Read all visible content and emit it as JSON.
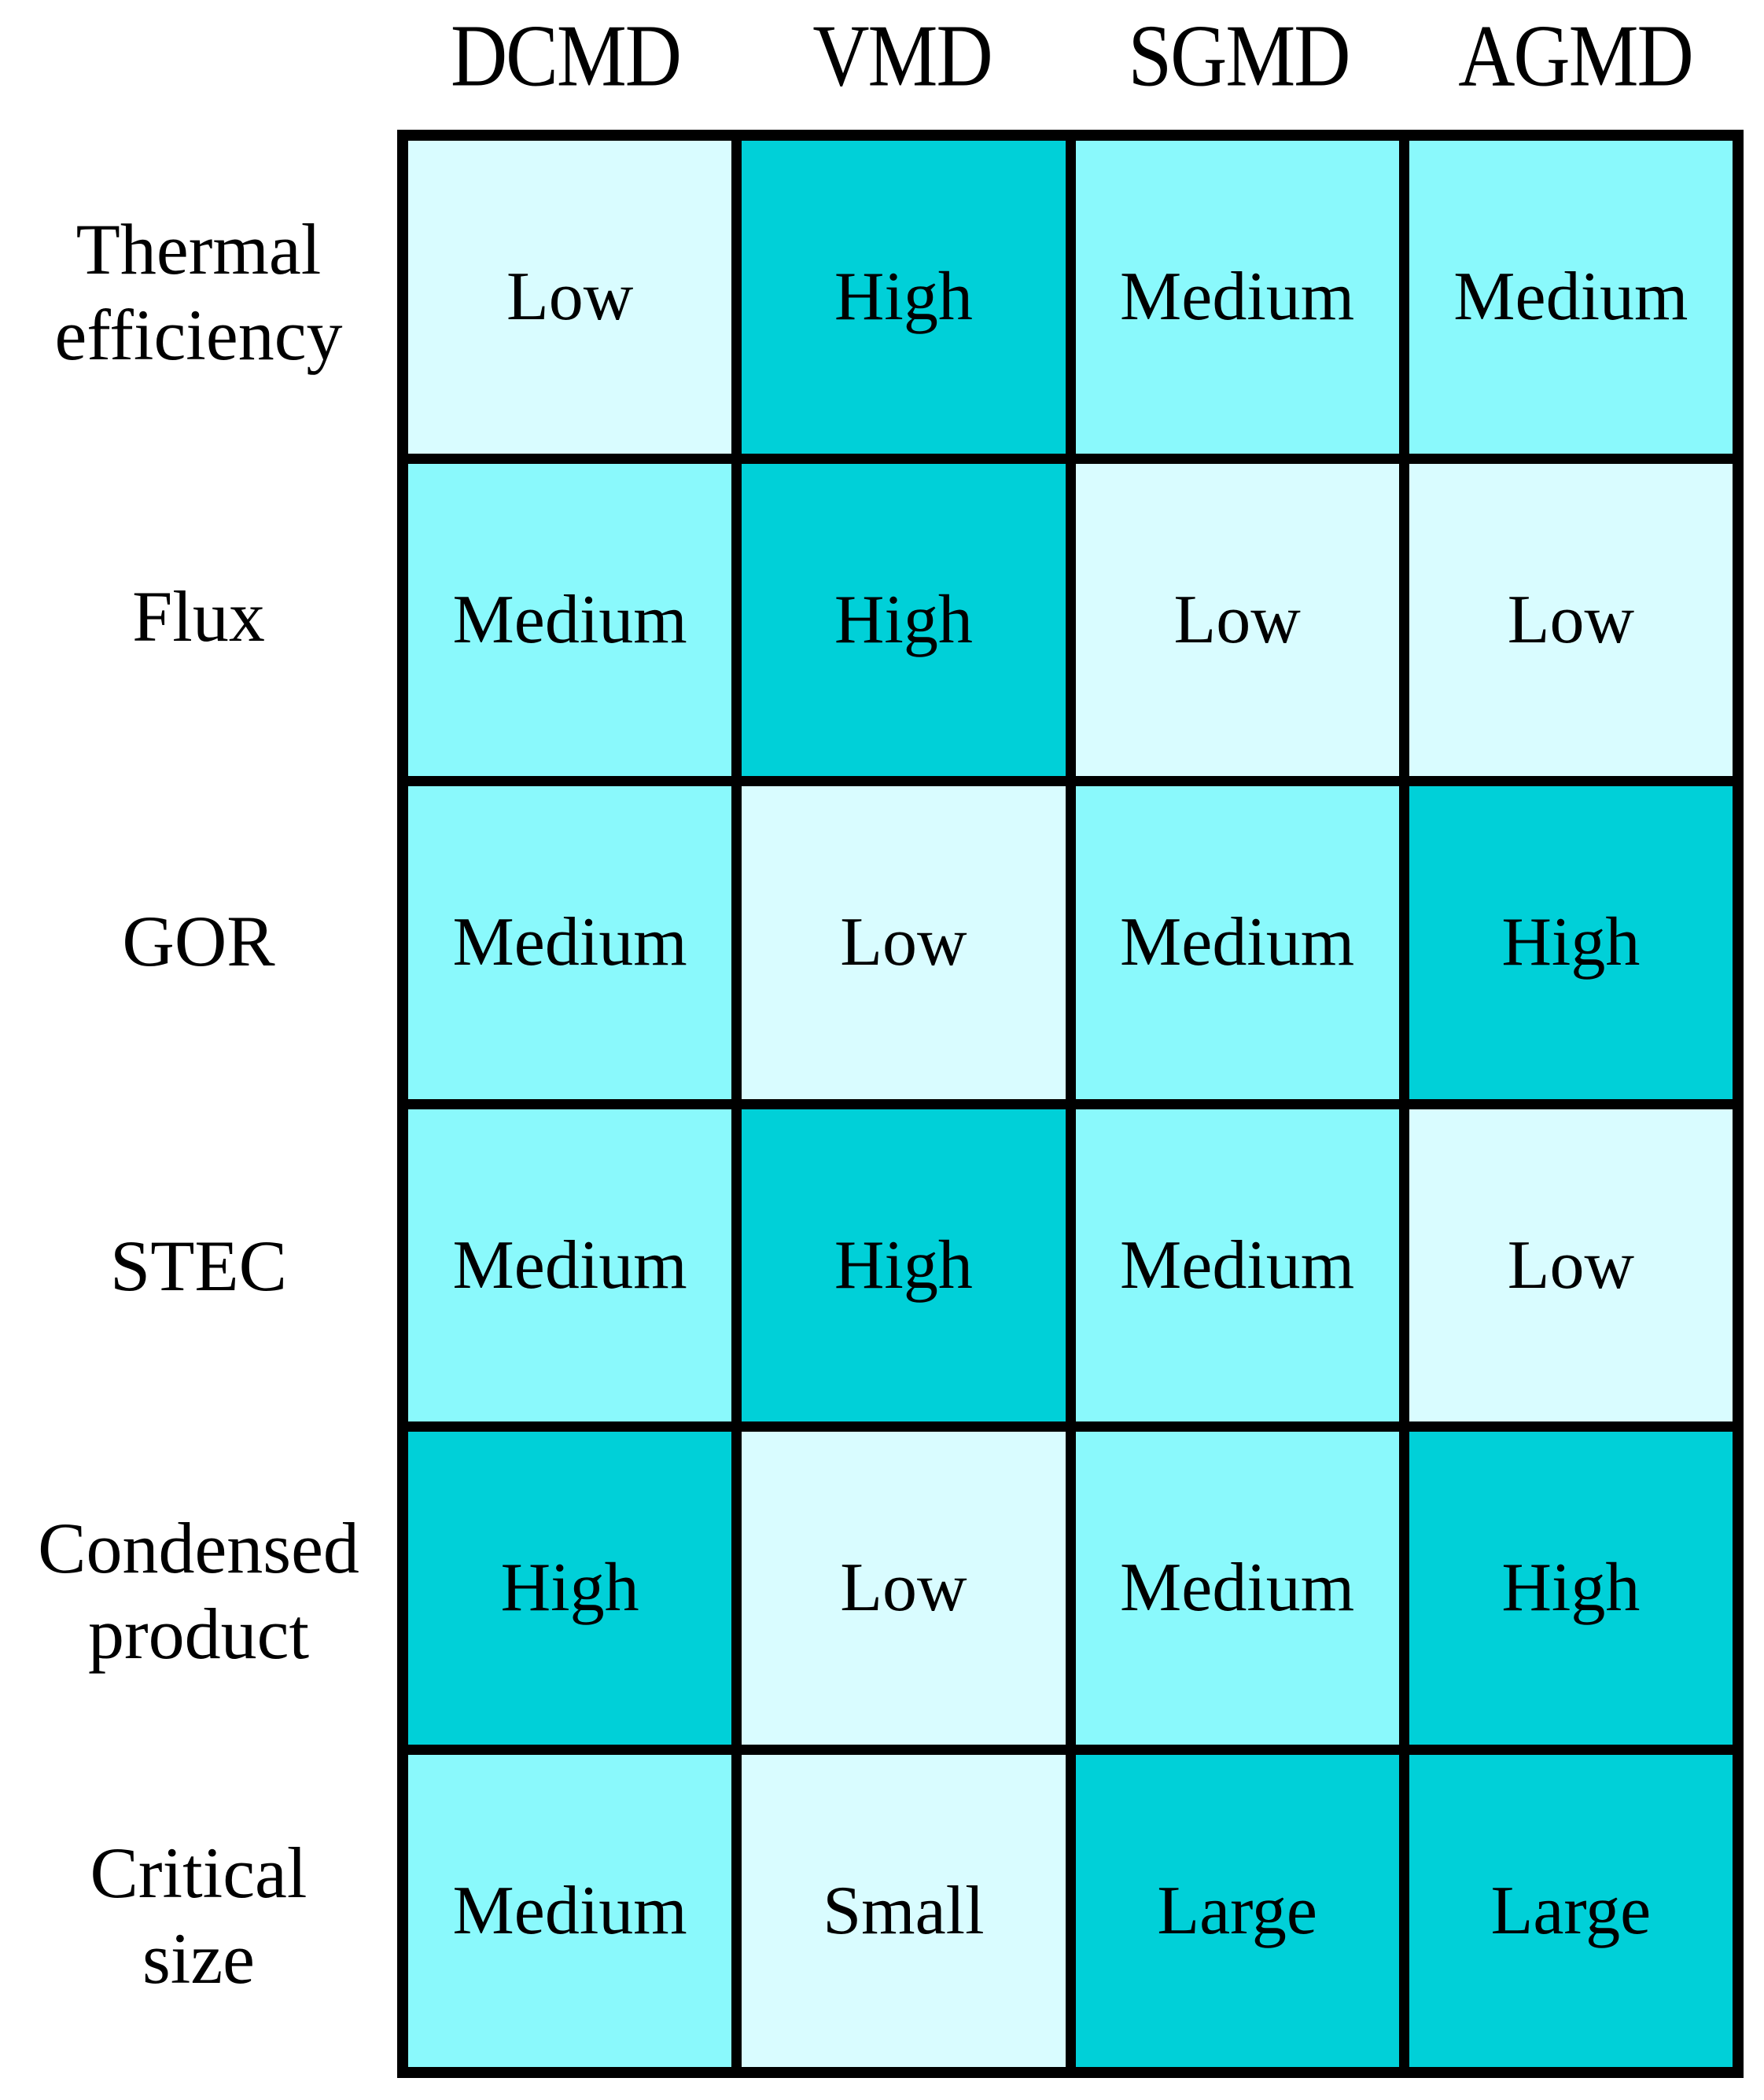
{
  "table": {
    "columns": [
      "DCMD",
      "VMD",
      "SGMD",
      "AGMD"
    ],
    "rows": [
      {
        "label": "Thermal\nefficiency",
        "values": [
          "Low",
          "High",
          "Medium",
          "Medium"
        ]
      },
      {
        "label": "Flux",
        "values": [
          "Medium",
          "High",
          "Low",
          "Low"
        ]
      },
      {
        "label": "GOR",
        "values": [
          "Medium",
          "Low",
          "Medium",
          "High"
        ]
      },
      {
        "label": "STEC",
        "values": [
          "Medium",
          "High",
          "Medium",
          "Low"
        ]
      },
      {
        "label": "Condensed\nproduct",
        "values": [
          "High",
          "Low",
          "Medium",
          "High"
        ]
      },
      {
        "label": "Critical\nsize",
        "values": [
          "Medium",
          "Small",
          "Large",
          "Large"
        ]
      }
    ],
    "level_by_text": {
      "Low": "low",
      "Small": "low",
      "Medium": "medium",
      "High": "high",
      "Large": "high"
    },
    "colors": {
      "low": "#d9fcff",
      "medium": "#8af9fc",
      "high": "#00d0d8",
      "border": "#000000",
      "text": "#000000",
      "background": "#ffffff"
    }
  },
  "chart_data": {
    "type": "heatmap",
    "title": "",
    "columns": [
      "DCMD",
      "VMD",
      "SGMD",
      "AGMD"
    ],
    "rows": [
      "Thermal efficiency",
      "Flux",
      "GOR",
      "STEC",
      "Condensed product",
      "Critical size"
    ],
    "values": [
      [
        "Low",
        "High",
        "Medium",
        "Medium"
      ],
      [
        "Medium",
        "High",
        "Low",
        "Low"
      ],
      [
        "Medium",
        "Low",
        "Medium",
        "High"
      ],
      [
        "Medium",
        "High",
        "Medium",
        "Low"
      ],
      [
        "High",
        "Low",
        "Medium",
        "High"
      ],
      [
        "Medium",
        "Small",
        "Large",
        "Large"
      ]
    ],
    "numeric_scale": {
      "Low": 1,
      "Small": 1,
      "Medium": 2,
      "High": 3,
      "Large": 3
    },
    "color_scale": {
      "1": "#d9fcff",
      "2": "#8af9fc",
      "3": "#00d0d8"
    },
    "legend": "none",
    "grid": true
  }
}
